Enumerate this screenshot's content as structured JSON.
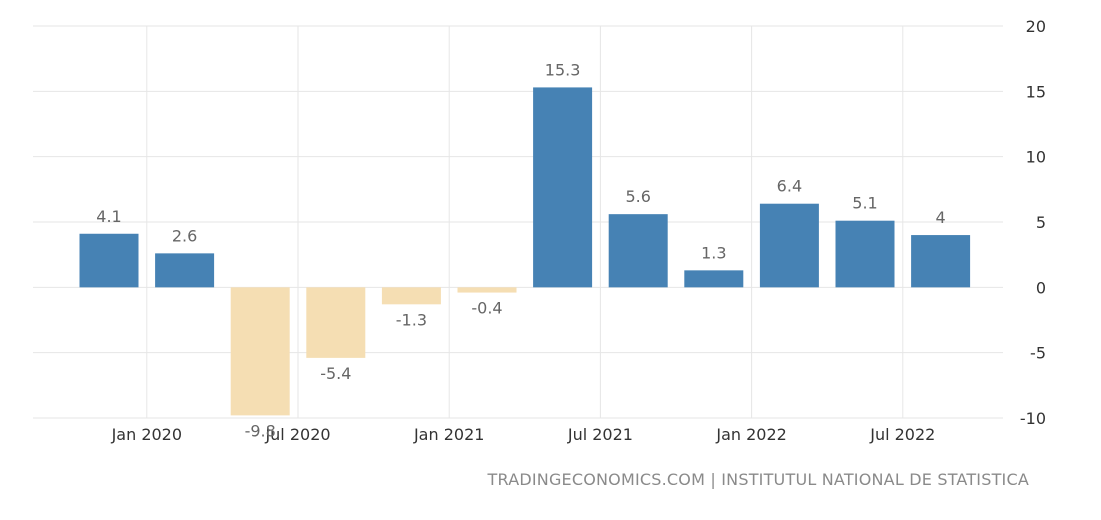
{
  "chart_data": {
    "type": "bar",
    "categories": [
      "Q4 2019",
      "Q1 2020",
      "Q2 2020",
      "Q3 2020",
      "Q4 2020",
      "Q1 2021",
      "Q2 2021",
      "Q3 2021",
      "Q4 2021",
      "Q1 2022",
      "Q2 2022",
      "Q3 2022"
    ],
    "values": [
      4.1,
      2.6,
      -9.8,
      -5.4,
      -1.3,
      -0.4,
      15.3,
      5.6,
      1.3,
      6.4,
      5.1,
      4
    ],
    "data_labels": [
      "4.1",
      "2.6",
      "-9.8",
      "-5.4",
      "-1.3",
      "-0.4",
      "15.3",
      "5.6",
      "1.3",
      "6.4",
      "5.1",
      "4"
    ],
    "x_tick_labels": [
      "Jan 2020",
      "Jul 2020",
      "Jan 2021",
      "Jul 2021",
      "Jan 2022",
      "Jul 2022"
    ],
    "y_ticks": [
      20,
      15,
      10,
      5,
      0,
      -5,
      -10
    ],
    "ylim": [
      -10,
      20
    ],
    "y_axis_side": "right",
    "grid": true,
    "legend": false,
    "title": "",
    "xlabel": "",
    "ylabel": "",
    "colors": {
      "positive": "#4682b4",
      "negative": "#f5deb3",
      "grid": "#e6e6e6",
      "text": "#333333",
      "label": "#666666"
    }
  },
  "footer": {
    "source_text": "TRADINGECONOMICS.COM | INSTITUTUL NATIONAL DE STATISTICA"
  }
}
